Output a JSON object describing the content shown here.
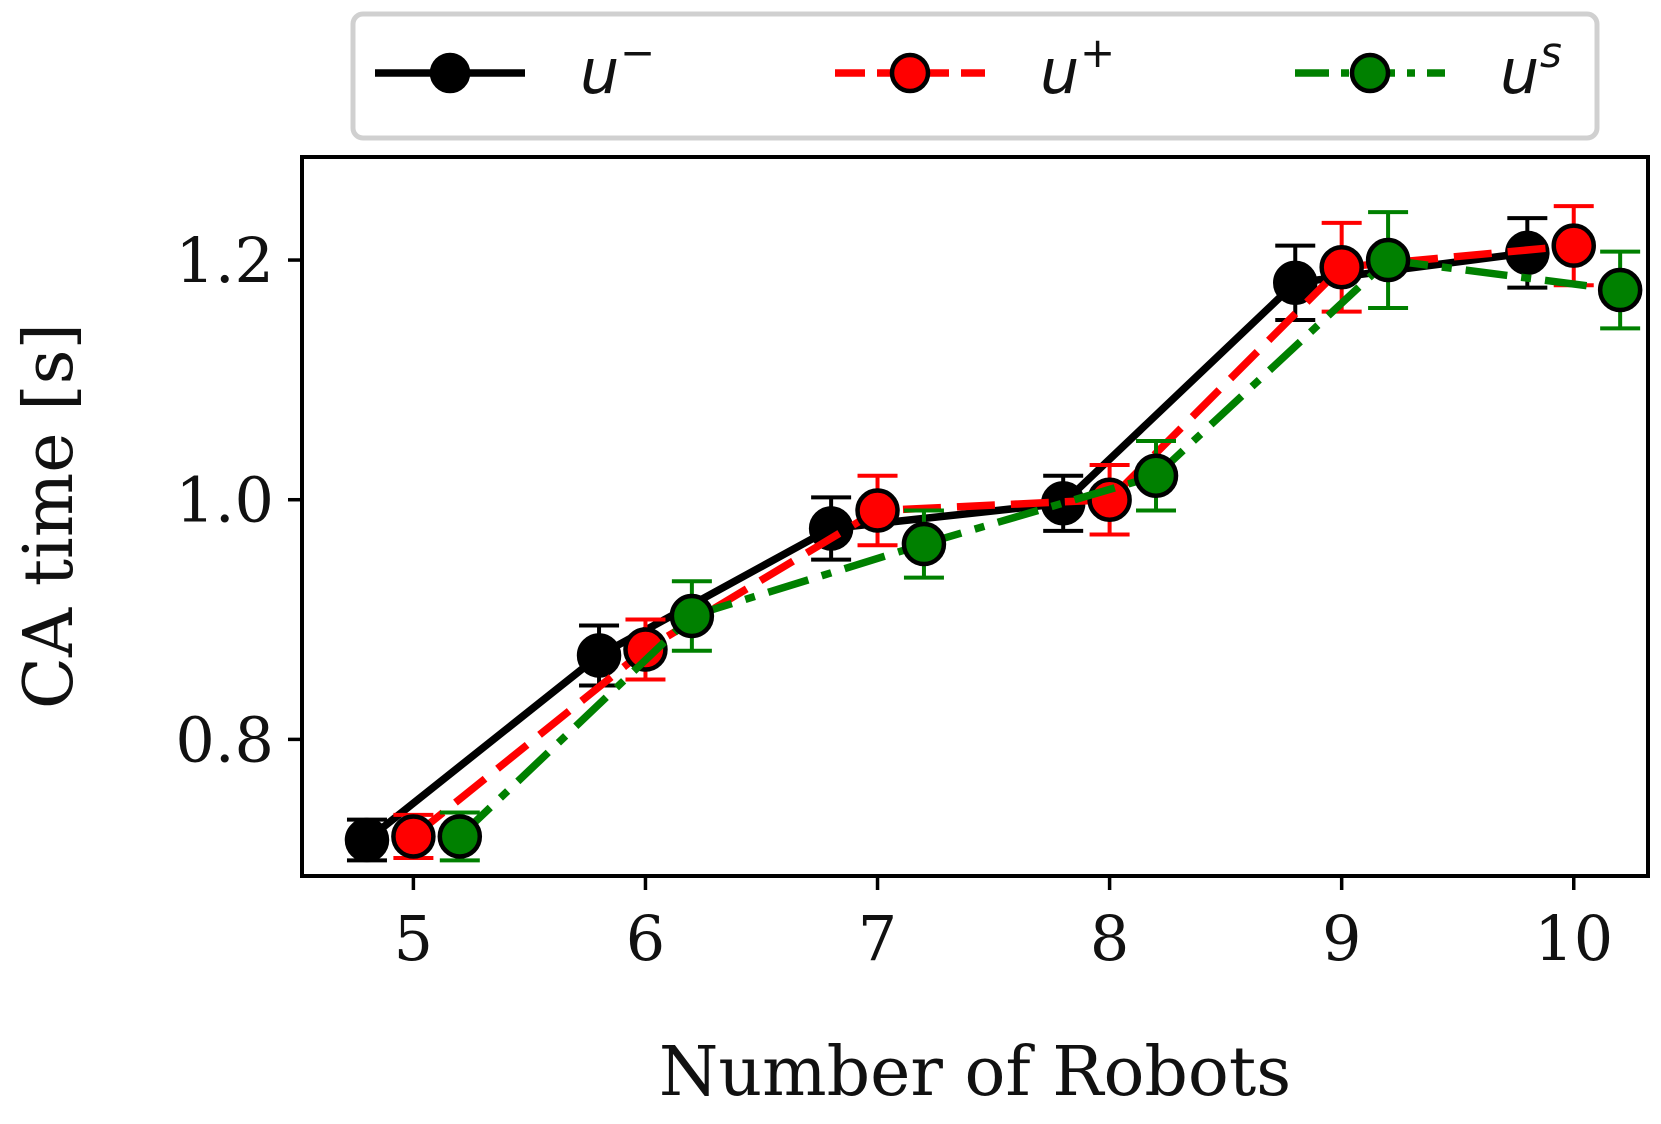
{
  "chart_data": {
    "type": "line",
    "xlabel": "Number of Robots",
    "ylabel": "CA time [s]",
    "xlim": [
      4.52,
      10.32
    ],
    "ylim": [
      0.686,
      1.286
    ],
    "x_ticks": [
      5,
      6,
      7,
      8,
      9,
      10
    ],
    "x_tick_labels": [
      "5",
      "6",
      "7",
      "8",
      "9",
      "10"
    ],
    "y_ticks": [
      0.8,
      1.0,
      1.2
    ],
    "y_tick_labels": [
      "0.8",
      "1.0",
      "1.2"
    ],
    "grid": false,
    "legend_placement": "top, outside plot",
    "series": [
      {
        "name": "u",
        "name_sup": "−",
        "color": "#000000",
        "line_style": "solid",
        "x": [
          4.8,
          5.8,
          6.8,
          7.8,
          8.8,
          9.8
        ],
        "values": [
          0.716,
          0.87,
          0.976,
          0.997,
          1.181,
          1.206
        ],
        "error": [
          0.017,
          0.025,
          0.026,
          0.023,
          0.031,
          0.029
        ]
      },
      {
        "name": "u",
        "name_sup": "+",
        "color": "#ff0000",
        "line_style": "dashed",
        "x": [
          5.0,
          6.0,
          7.0,
          8.0,
          9.0,
          10.0
        ],
        "values": [
          0.719,
          0.875,
          0.991,
          1.0,
          1.194,
          1.212
        ],
        "error": [
          0.018,
          0.025,
          0.029,
          0.029,
          0.037,
          0.033
        ]
      },
      {
        "name": "u",
        "name_sup": "s",
        "color": "#008000",
        "line_style": "dashdot",
        "x": [
          5.2,
          6.2,
          7.2,
          8.2,
          9.2,
          10.2
        ],
        "values": [
          0.719,
          0.903,
          0.963,
          1.02,
          1.2,
          1.175
        ],
        "error": [
          0.02,
          0.029,
          0.028,
          0.029,
          0.04,
          0.032
        ]
      }
    ]
  }
}
